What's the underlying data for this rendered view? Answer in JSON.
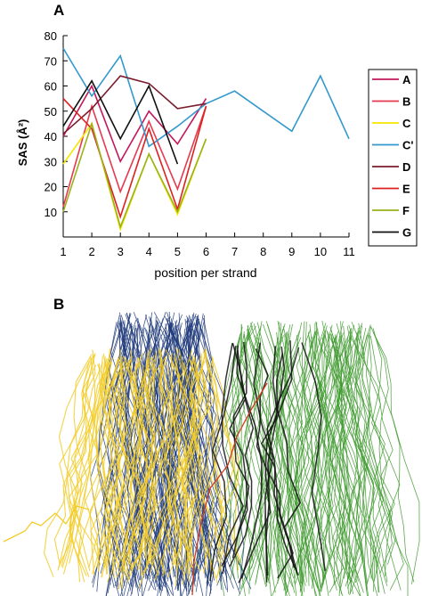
{
  "panels": {
    "a_label": "A",
    "b_label": "B"
  },
  "chart_data": {
    "type": "line",
    "xlabel": "position per strand",
    "ylabel": "SAS (Å²)",
    "x_ticks": [
      1,
      2,
      3,
      4,
      5,
      6,
      7,
      8,
      9,
      10,
      11
    ],
    "y_ticks": [
      10,
      20,
      30,
      40,
      50,
      60,
      70,
      80
    ],
    "xlim": [
      1,
      11
    ],
    "ylim": [
      0,
      80
    ],
    "legend_position": "right",
    "grid": false,
    "series": [
      {
        "name": "A",
        "color": "#c2185b",
        "x": [
          1,
          2,
          3,
          4,
          5,
          6
        ],
        "y": [
          40,
          60,
          30,
          50,
          37,
          55
        ]
      },
      {
        "name": "B",
        "color": "#e53950",
        "x": [
          1,
          2,
          3,
          4,
          5,
          6
        ],
        "y": [
          12,
          52,
          18,
          46,
          19,
          52
        ]
      },
      {
        "name": "C",
        "color": "#f5e600",
        "x": [
          1,
          2,
          3,
          4,
          5,
          6
        ],
        "y": [
          29,
          45,
          3,
          33,
          9,
          39
        ]
      },
      {
        "name": "C'",
        "color": "#3399cc",
        "x": [
          1,
          2,
          3,
          4,
          5,
          6,
          7,
          8,
          9,
          10,
          11
        ],
        "y": [
          75,
          56,
          72,
          36,
          44,
          53,
          58,
          50,
          42,
          64,
          39
        ]
      },
      {
        "name": "D",
        "color": "#7b1c2e",
        "x": [
          1,
          2,
          3,
          4,
          5,
          6
        ],
        "y": [
          41,
          51,
          64,
          61,
          51,
          53
        ]
      },
      {
        "name": "E",
        "color": "#dd2020",
        "x": [
          1,
          2,
          3,
          4,
          5,
          6
        ],
        "y": [
          55,
          43,
          8,
          43,
          11,
          52
        ]
      },
      {
        "name": "F",
        "color": "#9ab11c",
        "x": [
          1,
          2,
          3,
          4,
          5,
          6
        ],
        "y": [
          10,
          45,
          4,
          33,
          10,
          39
        ]
      },
      {
        "name": "G",
        "color": "#111111",
        "x": [
          1,
          2,
          3,
          4,
          5
        ],
        "y": [
          44,
          62,
          39,
          60,
          29
        ]
      }
    ]
  },
  "figure_b": {
    "strand_colors": [
      "#1f3a7a",
      "#f2cc2a",
      "#3f9a2f",
      "#111111",
      "#d33a1a"
    ]
  }
}
